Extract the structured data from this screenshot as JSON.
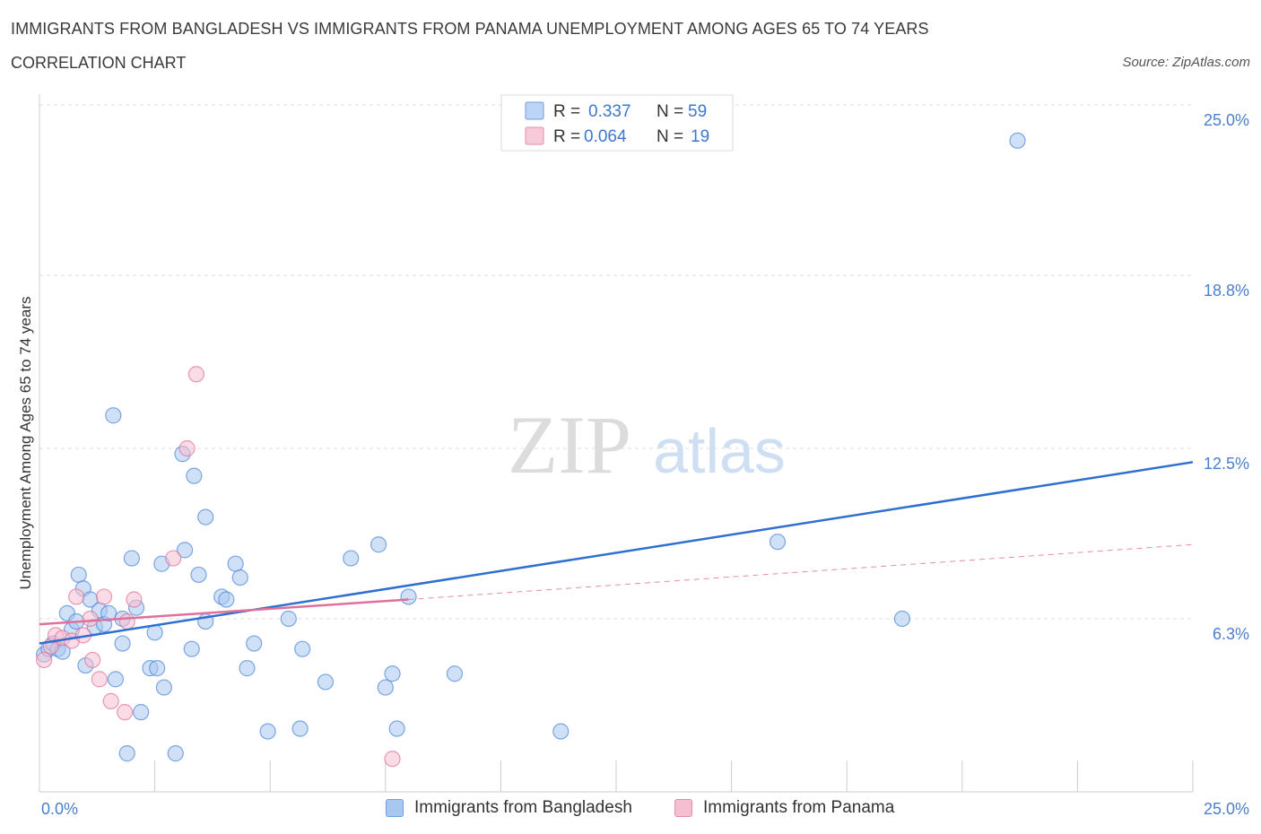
{
  "header": {
    "title": "IMMIGRANTS FROM BANGLADESH VS IMMIGRANTS FROM PANAMA UNEMPLOYMENT AMONG AGES 65 TO 74 YEARS",
    "subtitle": "CORRELATION CHART",
    "source": "Source: ZipAtlas.com"
  },
  "watermark": {
    "zip": "ZIP",
    "atlas": "atlas"
  },
  "stats": {
    "r_label": "R =",
    "n_label": "N =",
    "rows": [
      {
        "r": "0.337",
        "n": "59",
        "color": "#6a9fe0",
        "fill": "#bcd4f5"
      },
      {
        "r": "0.064",
        "n": "19",
        "color": "#e58aaa",
        "fill": "#f8cad9"
      }
    ]
  },
  "chart_data": {
    "type": "scatter",
    "title": "IMMIGRANTS FROM BANGLADESH VS IMMIGRANTS FROM PANAMA UNEMPLOYMENT AMONG AGES 65 TO 74 YEARS",
    "xlabel": "",
    "ylabel": "Unemployment Among Ages 65 to 74 years",
    "xlim": [
      0,
      25
    ],
    "ylim": [
      0,
      25
    ],
    "x_tick_labels": [
      "0.0%",
      "25.0%"
    ],
    "y_ticks": [
      {
        "value": 6.3,
        "label": "6.3%"
      },
      {
        "value": 12.5,
        "label": "12.5%"
      },
      {
        "value": 18.8,
        "label": "18.8%"
      },
      {
        "value": 25.0,
        "label": "25.0%"
      }
    ],
    "grid": true,
    "legend_position": "bottom-center",
    "series": [
      {
        "name": "Immigrants from Bangladesh",
        "color": "#4a86d8",
        "fill": "#a9c8f0",
        "trend": {
          "x0": 0,
          "y0": 5.4,
          "x1": 25,
          "y1": 12.0,
          "style": "solid"
        },
        "points": [
          [
            0.1,
            5.0
          ],
          [
            0.2,
            5.2
          ],
          [
            0.3,
            5.4
          ],
          [
            0.4,
            5.2
          ],
          [
            0.5,
            5.1
          ],
          [
            0.6,
            6.5
          ],
          [
            0.7,
            5.9
          ],
          [
            0.8,
            6.2
          ],
          [
            0.85,
            7.9
          ],
          [
            0.95,
            7.4
          ],
          [
            1.0,
            4.6
          ],
          [
            1.1,
            7.0
          ],
          [
            1.2,
            6.0
          ],
          [
            1.3,
            6.6
          ],
          [
            1.4,
            6.1
          ],
          [
            1.5,
            6.5
          ],
          [
            1.6,
            13.7
          ],
          [
            1.65,
            4.1
          ],
          [
            1.8,
            5.4
          ],
          [
            1.8,
            6.3
          ],
          [
            1.9,
            1.4
          ],
          [
            2.0,
            8.5
          ],
          [
            2.1,
            6.7
          ],
          [
            2.2,
            2.9
          ],
          [
            2.4,
            4.5
          ],
          [
            2.5,
            5.8
          ],
          [
            2.55,
            4.5
          ],
          [
            2.65,
            8.3
          ],
          [
            2.7,
            3.8
          ],
          [
            2.95,
            1.4
          ],
          [
            3.1,
            12.3
          ],
          [
            3.15,
            8.8
          ],
          [
            3.3,
            5.2
          ],
          [
            3.35,
            11.5
          ],
          [
            3.45,
            7.9
          ],
          [
            3.6,
            6.2
          ],
          [
            3.6,
            10.0
          ],
          [
            3.95,
            7.1
          ],
          [
            4.05,
            7.0
          ],
          [
            4.25,
            8.3
          ],
          [
            4.35,
            7.8
          ],
          [
            4.5,
            4.5
          ],
          [
            4.65,
            5.4
          ],
          [
            4.95,
            2.2
          ],
          [
            5.4,
            6.3
          ],
          [
            5.65,
            2.3
          ],
          [
            5.7,
            5.2
          ],
          [
            6.2,
            4.0
          ],
          [
            6.75,
            8.5
          ],
          [
            7.35,
            9.0
          ],
          [
            7.5,
            3.8
          ],
          [
            7.65,
            4.3
          ],
          [
            7.75,
            2.3
          ],
          [
            8.0,
            7.1
          ],
          [
            9.0,
            4.3
          ],
          [
            11.3,
            2.2
          ],
          [
            16.0,
            9.1
          ],
          [
            18.7,
            6.3
          ],
          [
            21.2,
            23.7
          ]
        ]
      },
      {
        "name": "Immigrants from Panama",
        "color": "#e0709a",
        "fill": "#f5bfd1",
        "trend": {
          "x0": 0,
          "y0": 6.1,
          "x1": 8.0,
          "y1": 7.0,
          "x_ext": 25,
          "y_ext": 9.0,
          "style": "solid+dashed"
        },
        "points": [
          [
            0.1,
            4.8
          ],
          [
            0.25,
            5.3
          ],
          [
            0.35,
            5.7
          ],
          [
            0.5,
            5.6
          ],
          [
            0.7,
            5.5
          ],
          [
            0.8,
            7.1
          ],
          [
            0.95,
            5.7
          ],
          [
            1.1,
            6.3
          ],
          [
            1.15,
            4.8
          ],
          [
            1.3,
            4.1
          ],
          [
            1.4,
            7.1
          ],
          [
            1.55,
            3.3
          ],
          [
            1.9,
            6.2
          ],
          [
            1.85,
            2.9
          ],
          [
            2.05,
            7.0
          ],
          [
            2.9,
            8.5
          ],
          [
            3.2,
            12.5
          ],
          [
            3.4,
            15.2
          ],
          [
            7.65,
            1.2
          ]
        ]
      }
    ]
  },
  "legend": {
    "items": [
      {
        "label": "Immigrants from Bangladesh",
        "color": "#a9c8f0",
        "border": "#6a9fe0"
      },
      {
        "label": "Immigrants from Panama",
        "color": "#f5bfd1",
        "border": "#e58aaa"
      }
    ]
  }
}
